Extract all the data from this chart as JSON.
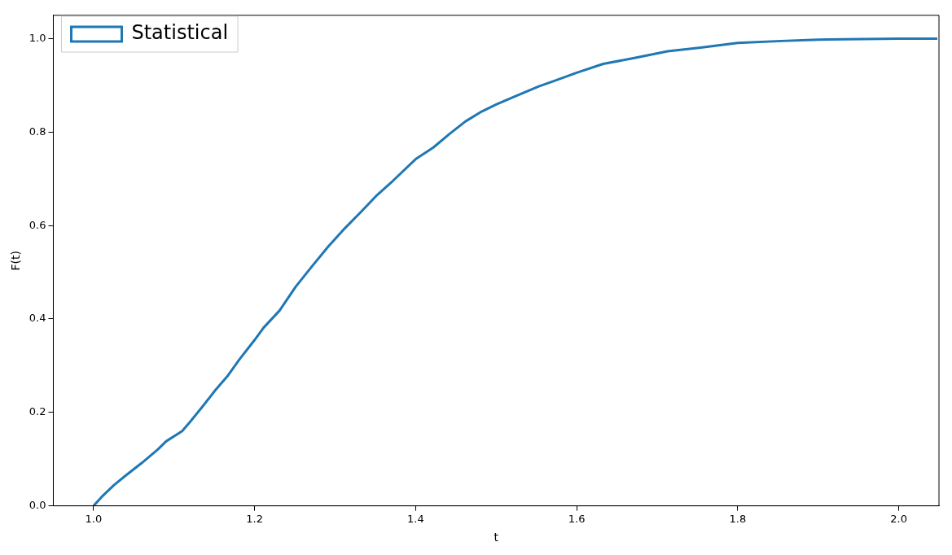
{
  "chart_data": {
    "type": "line",
    "xlabel": "t",
    "ylabel": "F(t)",
    "xlim": [
      0.95,
      2.05
    ],
    "xticks": [
      {
        "value": 1,
        "label": "1.0"
      },
      1.2,
      1.4,
      1.6,
      1.8,
      {
        "value": 2,
        "label": "2.0"
      }
    ],
    "ylim": [
      0,
      1.05
    ],
    "yticks": [
      {
        "value": 0,
        "label": "0.0"
      },
      0.2,
      0.4,
      0.6,
      0.8,
      {
        "value": 1,
        "label": "1.0"
      }
    ],
    "grid": false,
    "legend": "top left",
    "marker": "none",
    "line_style": "solid",
    "series": [
      {
        "name": "Statistical",
        "color": "#1f77b4",
        "x": [
          1.0,
          1.01,
          1.025,
          1.04,
          1.06,
          1.08,
          1.09,
          1.11,
          1.12,
          1.136,
          1.151,
          1.166,
          1.181,
          1.2,
          1.211,
          1.231,
          1.251,
          1.271,
          1.291,
          1.312,
          1.332,
          1.352,
          1.372,
          1.4,
          1.422,
          1.442,
          1.462,
          1.482,
          1.5,
          1.523,
          1.553,
          1.573,
          1.6,
          1.633,
          1.673,
          1.713,
          1.754,
          1.8,
          1.854,
          1.9,
          2.0,
          2.048
        ],
        "values": [
          0,
          0.019,
          0.044,
          0.065,
          0.092,
          0.121,
          0.138,
          0.16,
          0.18,
          0.214,
          0.247,
          0.277,
          0.313,
          0.355,
          0.381,
          0.418,
          0.469,
          0.512,
          0.554,
          0.594,
          0.629,
          0.665,
          0.696,
          0.742,
          0.767,
          0.796,
          0.823,
          0.844,
          0.859,
          0.876,
          0.898,
          0.91,
          0.927,
          0.946,
          0.959,
          0.973,
          0.981,
          0.991,
          0.995,
          0.998,
          1.0,
          1.0
        ]
      }
    ]
  }
}
